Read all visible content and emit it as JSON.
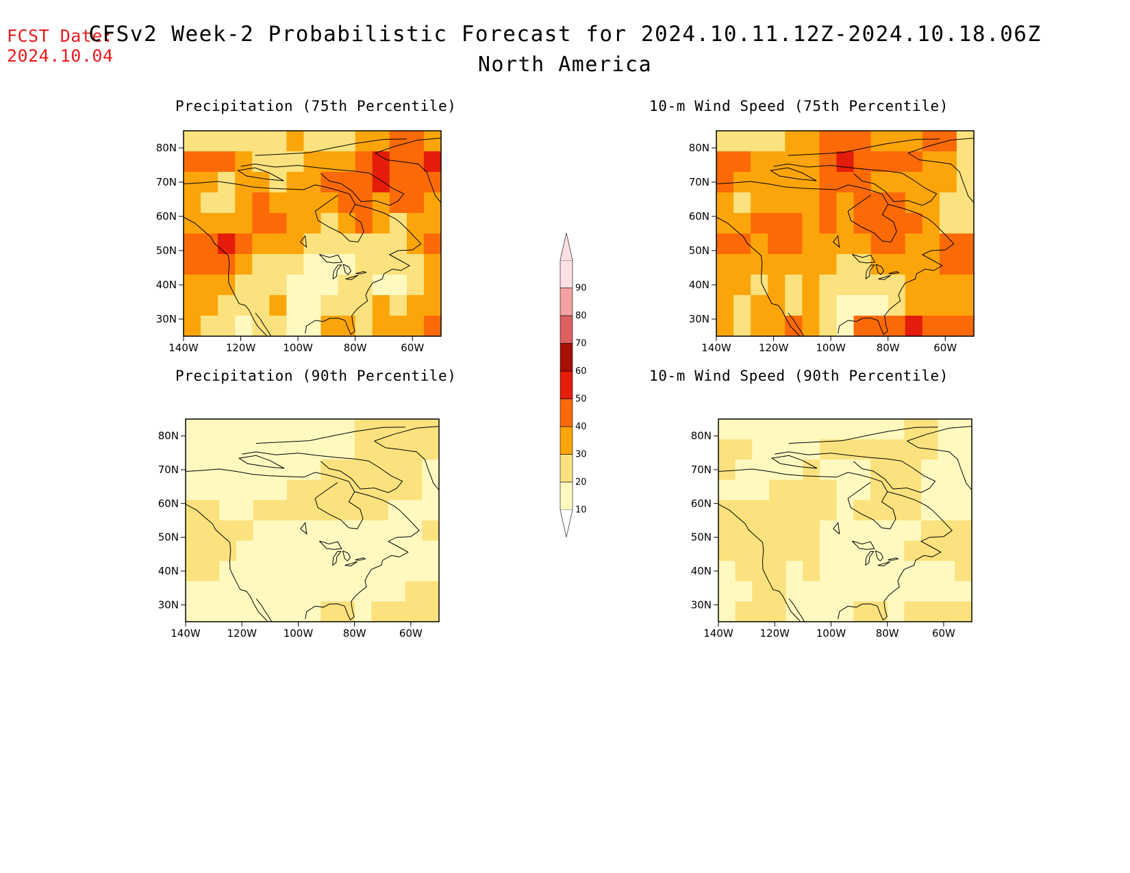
{
  "header": {
    "fcst_label": "FCST Date:",
    "fcst_date": "2024.10.04",
    "title": "CFSv2 Week-2 Probabilistic Forecast for 2024.10.11.12Z-2024.10.18.06Z",
    "region": "North America"
  },
  "colors": {
    "fcst": "#e8191c",
    "scale": [
      "#fff9c0",
      "#fbe27e",
      "#fca50a",
      "#fb6a07",
      "#e41c0a",
      "#a50f04",
      "#dc6060",
      "#f3a1a1",
      "#fde0e4"
    ]
  },
  "colorbar": {
    "ticks": [
      "10",
      "20",
      "30",
      "40",
      "50",
      "60",
      "70",
      "80",
      "90"
    ]
  },
  "axes": {
    "lat_labels": [
      "80N",
      "70N",
      "60N",
      "50N",
      "40N",
      "30N"
    ],
    "lon_labels": [
      "140W",
      "120W",
      "100W",
      "80W",
      "60W"
    ]
  },
  "panels": [
    {
      "id": "precip75",
      "title": "Precipitation (75th Percentile)",
      "field": [
        [
          1,
          1,
          1,
          1,
          1,
          1,
          2,
          1,
          1,
          1,
          2,
          2,
          3,
          3,
          2
        ],
        [
          3,
          3,
          3,
          2,
          1,
          1,
          1,
          2,
          2,
          2,
          3,
          4,
          3,
          3,
          4
        ],
        [
          2,
          2,
          1,
          2,
          2,
          1,
          2,
          2,
          3,
          3,
          3,
          4,
          3,
          3,
          3
        ],
        [
          2,
          1,
          1,
          2,
          3,
          2,
          2,
          2,
          2,
          3,
          3,
          2,
          3,
          3,
          2
        ],
        [
          2,
          2,
          2,
          2,
          3,
          3,
          2,
          2,
          1,
          2,
          3,
          2,
          1,
          2,
          2
        ],
        [
          3,
          3,
          4,
          3,
          2,
          2,
          2,
          1,
          1,
          1,
          1,
          1,
          1,
          2,
          3
        ],
        [
          3,
          3,
          3,
          2,
          1,
          1,
          1,
          0,
          0,
          0,
          1,
          1,
          1,
          1,
          2
        ],
        [
          2,
          2,
          2,
          1,
          1,
          1,
          0,
          0,
          0,
          1,
          1,
          0,
          0,
          1,
          2
        ],
        [
          2,
          2,
          1,
          1,
          1,
          2,
          0,
          0,
          1,
          1,
          1,
          2,
          1,
          2,
          2
        ],
        [
          2,
          1,
          1,
          0,
          1,
          1,
          0,
          0,
          2,
          2,
          1,
          2,
          2,
          2,
          3
        ]
      ],
      "cbar_value": 18
    },
    {
      "id": "wind75",
      "title": "10-m Wind Speed (75th Percentile)",
      "field": [
        [
          1,
          1,
          1,
          1,
          2,
          2,
          3,
          3,
          3,
          2,
          2,
          2,
          3,
          3,
          1
        ],
        [
          3,
          3,
          2,
          2,
          2,
          2,
          3,
          4,
          3,
          3,
          3,
          3,
          2,
          2,
          1
        ],
        [
          3,
          2,
          2,
          2,
          2,
          2,
          3,
          3,
          3,
          2,
          2,
          2,
          2,
          2,
          1
        ],
        [
          2,
          1,
          2,
          2,
          2,
          2,
          3,
          2,
          3,
          3,
          3,
          2,
          2,
          1,
          1
        ],
        [
          2,
          2,
          3,
          3,
          3,
          2,
          3,
          2,
          3,
          3,
          3,
          3,
          2,
          1,
          1
        ],
        [
          3,
          3,
          2,
          3,
          3,
          2,
          2,
          2,
          2,
          3,
          3,
          2,
          2,
          3,
          3
        ],
        [
          2,
          2,
          2,
          2,
          2,
          2,
          2,
          1,
          1,
          2,
          2,
          2,
          2,
          3,
          3
        ],
        [
          2,
          2,
          1,
          2,
          1,
          2,
          1,
          1,
          1,
          1,
          1,
          2,
          2,
          2,
          2
        ],
        [
          2,
          1,
          2,
          2,
          1,
          2,
          1,
          0,
          0,
          0,
          1,
          2,
          2,
          2,
          2
        ],
        [
          2,
          1,
          2,
          2,
          3,
          2,
          1,
          0,
          3,
          3,
          3,
          4,
          3,
          3,
          3
        ]
      ],
      "cbar_value": 22
    },
    {
      "id": "precip90",
      "title": "Precipitation (90th Percentile)",
      "field": [
        [
          0,
          0,
          0,
          0,
          0,
          0,
          0,
          0,
          0,
          0,
          1,
          1,
          1,
          1,
          1
        ],
        [
          0,
          0,
          0,
          0,
          0,
          0,
          0,
          0,
          0,
          0,
          1,
          1,
          1,
          1,
          1
        ],
        [
          0,
          0,
          0,
          0,
          0,
          0,
          0,
          0,
          1,
          1,
          1,
          1,
          1,
          1,
          0
        ],
        [
          0,
          0,
          0,
          0,
          0,
          0,
          1,
          1,
          1,
          1,
          1,
          1,
          1,
          1,
          0
        ],
        [
          1,
          1,
          0,
          0,
          1,
          1,
          1,
          1,
          1,
          1,
          1,
          1,
          0,
          0,
          0
        ],
        [
          1,
          1,
          1,
          1,
          0,
          0,
          0,
          0,
          0,
          0,
          0,
          0,
          0,
          0,
          1
        ],
        [
          1,
          1,
          1,
          0,
          0,
          0,
          0,
          0,
          0,
          0,
          0,
          0,
          0,
          0,
          0
        ],
        [
          1,
          1,
          0,
          0,
          0,
          0,
          0,
          0,
          0,
          0,
          0,
          0,
          0,
          0,
          0
        ],
        [
          0,
          0,
          0,
          0,
          0,
          0,
          0,
          0,
          0,
          0,
          0,
          0,
          0,
          1,
          1
        ],
        [
          0,
          0,
          0,
          0,
          0,
          0,
          0,
          0,
          1,
          1,
          0,
          1,
          1,
          1,
          1
        ]
      ],
      "cbar_value": 12
    },
    {
      "id": "wind90",
      "title": "10-m Wind Speed (90th Percentile)",
      "field": [
        [
          0,
          0,
          0,
          0,
          0,
          0,
          0,
          0,
          0,
          0,
          0,
          1,
          1,
          0,
          0
        ],
        [
          1,
          1,
          0,
          0,
          0,
          0,
          1,
          1,
          1,
          1,
          1,
          1,
          1,
          0,
          0
        ],
        [
          1,
          0,
          0,
          0,
          0,
          1,
          0,
          0,
          0,
          1,
          1,
          1,
          0,
          0,
          0
        ],
        [
          0,
          0,
          0,
          1,
          1,
          1,
          1,
          0,
          0,
          1,
          1,
          1,
          0,
          0,
          0
        ],
        [
          1,
          1,
          1,
          1,
          1,
          1,
          1,
          0,
          1,
          1,
          1,
          1,
          0,
          0,
          0
        ],
        [
          1,
          1,
          1,
          1,
          1,
          1,
          0,
          0,
          0,
          0,
          0,
          0,
          1,
          1,
          1
        ],
        [
          1,
          1,
          1,
          1,
          1,
          1,
          0,
          0,
          0,
          0,
          0,
          1,
          1,
          1,
          1
        ],
        [
          0,
          1,
          1,
          1,
          0,
          1,
          0,
          0,
          0,
          0,
          0,
          0,
          0,
          0,
          1
        ],
        [
          0,
          0,
          1,
          1,
          0,
          0,
          0,
          0,
          0,
          0,
          0,
          0,
          0,
          0,
          0
        ],
        [
          0,
          1,
          1,
          1,
          0,
          0,
          0,
          0,
          1,
          1,
          0,
          1,
          1,
          1,
          1
        ]
      ],
      "cbar_value": 14
    }
  ]
}
